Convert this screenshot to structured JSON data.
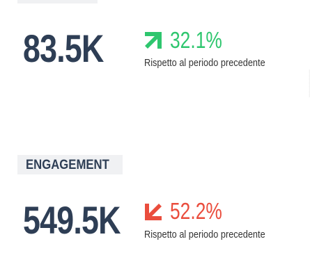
{
  "metrics": [
    {
      "value": "83.5K",
      "change": "32.1%",
      "comparison": "Rispetto al periodo precedente"
    },
    {
      "label": "ENGAGEMENT",
      "value": "549.5K",
      "change": "52.2%",
      "comparison": "Rispetto al periodo precedente"
    }
  ]
}
